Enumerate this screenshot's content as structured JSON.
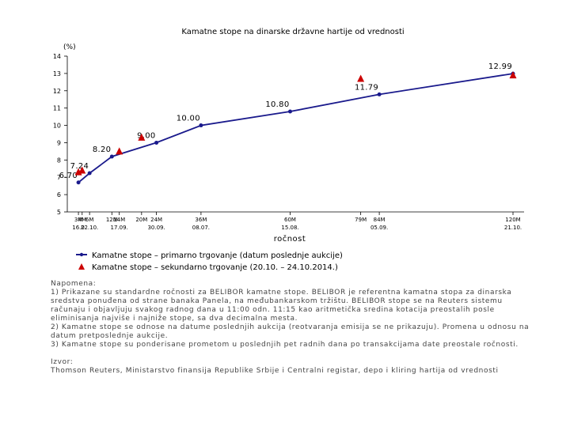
{
  "chart_data": {
    "type": "line",
    "title": "Kamatne stope na dinarske državne hartije od vrednosti",
    "ylabel": "(%)",
    "xlabel": "ročnost",
    "ylim": [
      5,
      14
    ],
    "xlim": [
      0,
      120
    ],
    "y_ticks": [
      5,
      6,
      7,
      8,
      9,
      10,
      11,
      12,
      13,
      14
    ],
    "x_ticks": [
      {
        "x": 3,
        "label": "3M"
      },
      {
        "x": 4,
        "label": "4M"
      },
      {
        "x": 6,
        "label": "6M"
      },
      {
        "x": 12,
        "label": "12M"
      },
      {
        "x": 14,
        "label": "14M"
      },
      {
        "x": 20,
        "label": "20M"
      },
      {
        "x": 24,
        "label": "24M"
      },
      {
        "x": 36,
        "label": "36M"
      },
      {
        "x": 60,
        "label": "60M"
      },
      {
        "x": 79,
        "label": "79M"
      },
      {
        "x": 84,
        "label": "84M"
      },
      {
        "x": 120,
        "label": "120M"
      }
    ],
    "date_ticks": [
      {
        "x": 3,
        "label": "16.0"
      },
      {
        "x": 6,
        "label": "22.10."
      },
      {
        "x": 14,
        "label": "17.09."
      },
      {
        "x": 24,
        "label": "30.09."
      },
      {
        "x": 36,
        "label": "08.07."
      },
      {
        "x": 60,
        "label": "15.08."
      },
      {
        "x": 84,
        "label": "05.09."
      },
      {
        "x": 120,
        "label": "21.10."
      }
    ],
    "series": [
      {
        "name": "Kamatne stope – primarno trgovanje (datum poslednje aukcije)",
        "kind": "line",
        "color": "#1a1a8c",
        "x": [
          3,
          6,
          12,
          24,
          36,
          60,
          84,
          120
        ],
        "y": [
          6.7,
          7.24,
          8.2,
          9.0,
          10.0,
          10.8,
          11.79,
          12.99
        ],
        "labels": [
          "6.70",
          "7.24",
          "8.20",
          "9.00",
          "10.00",
          "10.80",
          "11.79",
          "12.99"
        ]
      },
      {
        "name": "Kamatne stope – sekundarno trgovanje (20.10. – 24.10.2014.)",
        "kind": "scatter",
        "color": "#cc0000",
        "x": [
          3,
          4,
          14,
          20,
          79,
          120
        ],
        "y": [
          7.3,
          7.4,
          8.5,
          9.3,
          12.7,
          12.9
        ]
      }
    ],
    "grid": false,
    "legend_position": "bottom-left"
  },
  "notes": {
    "heading": "Napomena:",
    "lines": [
      "1) Prikazane su standardne ročnosti za BELIBOR kamatne stope. BELIBOR je referentna kamatna stopa za dinarska sredstva ponuđena od strane banaka Panela, na međubankarskom tržištu. BELIBOR stope se na Reuters sistemu računaju i objavljuju svakog radnog dana u 11:00 odn. 11:15 kao aritmetička sredina kotacija preostalih posle eliminisanja najviše i najniže stope, sa dva decimalna mesta.",
      "2) Kamatne stope se odnose na datume poslednjih aukcija (reotvaranja emisija se ne prikazuju). Promena u odnosu na datum pretposlednje aukcije.",
      "3) Kamatne stope su ponderisane prometom u poslednjih pet radnih dana po transakcijama date preostale ročnosti."
    ],
    "source_heading": "Izvor:",
    "source": "Thomson Reuters, Ministarstvo finansija Republike Srbije i Centralni registar, depo i kliring hartija od vrednosti"
  }
}
